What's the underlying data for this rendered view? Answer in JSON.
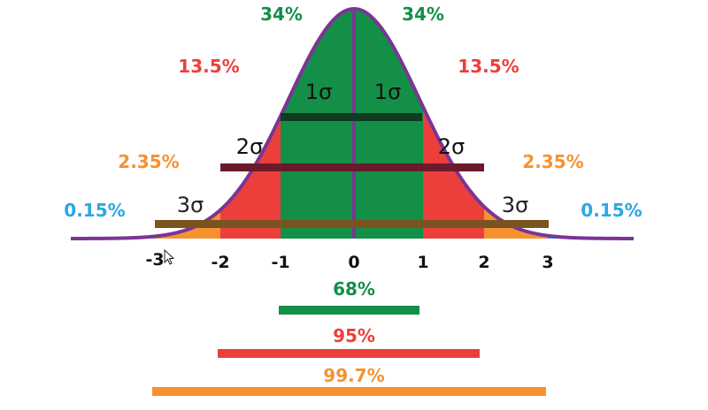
{
  "colors": {
    "green": "#138f47",
    "red": "#ec3f3c",
    "orange": "#f5922f",
    "blue": "#2aa8e0",
    "curve": "#7a3595",
    "bar1": "#0e3b22",
    "bar2": "#6b1a2c",
    "bar3": "#7a5420"
  },
  "curve": {
    "region_labels": {
      "left_center": "34%",
      "right_center": "34%",
      "left_one_two": "13.5%",
      "right_one_two": "13.5%",
      "left_two_three": "2.35%",
      "right_two_three": "2.35%",
      "left_tail": "0.15%",
      "right_tail": "0.15%"
    },
    "sigma_labels": {
      "one_left": "1σ",
      "one_right": "1σ",
      "two_left": "2σ",
      "two_right": "2σ",
      "three_left": "3σ",
      "three_right": "3σ"
    }
  },
  "axis": {
    "ticks": [
      "-3",
      "-2",
      "-1",
      "0",
      "1",
      "2",
      "3"
    ]
  },
  "ranges": [
    {
      "label": "68%",
      "from": -1,
      "to": 1,
      "color": "green"
    },
    {
      "label": "95%",
      "from": -2,
      "to": 2,
      "color": "red"
    },
    {
      "label": "99.7%",
      "from": -3,
      "to": 3,
      "color": "orange"
    }
  ]
}
